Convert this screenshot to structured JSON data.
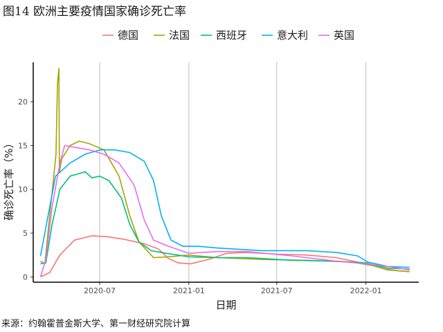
{
  "figure": {
    "title": "图14 欧洲主要疫情国家确诊死亡率",
    "source": "来源：约翰霍普金斯大学、第一财经研究院计算"
  },
  "chart_data": {
    "type": "line",
    "title": "图14 欧洲主要疫情国家确诊死亡率",
    "xlabel": "日期",
    "ylabel": "确诊死亡率（%）",
    "x_ticks": [
      "2020-07",
      "2021-01",
      "2021-07",
      "2022-01"
    ],
    "y_ticks": [
      0,
      5,
      10,
      15,
      20
    ],
    "xlim": [
      "2020-02-15",
      "2022-04-20"
    ],
    "ylim": [
      -0.6,
      24.5
    ],
    "grid": "vertical-major",
    "legend_position": "top",
    "series": [
      {
        "name": "德国",
        "color": "#F8766D",
        "points": [
          [
            "2020-03-01",
            0.0
          ],
          [
            "2020-03-20",
            0.5
          ],
          [
            "2020-04-10",
            2.5
          ],
          [
            "2020-05-10",
            4.2
          ],
          [
            "2020-06-15",
            4.7
          ],
          [
            "2020-07-15",
            4.6
          ],
          [
            "2020-08-20",
            4.3
          ],
          [
            "2020-09-30",
            3.8
          ],
          [
            "2020-10-30",
            3.2
          ],
          [
            "2020-11-20",
            2.1
          ],
          [
            "2020-12-10",
            1.6
          ],
          [
            "2021-01-05",
            1.5
          ],
          [
            "2021-02-10",
            2.0
          ],
          [
            "2021-03-20",
            2.7
          ],
          [
            "2021-05-01",
            2.8
          ],
          [
            "2021-07-01",
            2.6
          ],
          [
            "2021-09-01",
            2.5
          ],
          [
            "2021-11-01",
            2.2
          ],
          [
            "2021-12-15",
            1.7
          ],
          [
            "2022-01-10",
            1.4
          ],
          [
            "2022-02-10",
            0.9
          ],
          [
            "2022-03-10",
            0.7
          ],
          [
            "2022-04-01",
            0.6
          ]
        ]
      },
      {
        "name": "法国",
        "color": "#A3A500",
        "points": [
          [
            "2020-03-01",
            1.8
          ],
          [
            "2020-03-10",
            1.5
          ],
          [
            "2020-03-20",
            7.0
          ],
          [
            "2020-04-02",
            14.0
          ],
          [
            "2020-04-05",
            22.0
          ],
          [
            "2020-04-08",
            23.8
          ],
          [
            "2020-04-09",
            12.0
          ],
          [
            "2020-04-14",
            13.5
          ],
          [
            "2020-05-01",
            15.0
          ],
          [
            "2020-05-20",
            15.5
          ],
          [
            "2020-06-10",
            15.2
          ],
          [
            "2020-07-10",
            14.5
          ],
          [
            "2020-08-10",
            11.5
          ],
          [
            "2020-09-01",
            7.0
          ],
          [
            "2020-09-20",
            4.0
          ],
          [
            "2020-10-20",
            2.2
          ],
          [
            "2020-11-20",
            2.3
          ],
          [
            "2021-01-01",
            2.5
          ],
          [
            "2021-03-01",
            2.2
          ],
          [
            "2021-06-01",
            2.0
          ],
          [
            "2021-09-01",
            1.9
          ],
          [
            "2021-12-01",
            1.7
          ],
          [
            "2022-01-15",
            1.3
          ],
          [
            "2022-02-15",
            0.8
          ],
          [
            "2022-04-01",
            0.6
          ]
        ]
      },
      {
        "name": "西班牙",
        "color": "#00BF7D",
        "points": [
          [
            "2020-03-01",
            1.5
          ],
          [
            "2020-03-12",
            1.6
          ],
          [
            "2020-03-25",
            6.0
          ],
          [
            "2020-04-10",
            10.0
          ],
          [
            "2020-05-01",
            11.5
          ],
          [
            "2020-05-20",
            11.8
          ],
          [
            "2020-06-01",
            12.0
          ],
          [
            "2020-06-15",
            11.3
          ],
          [
            "2020-07-01",
            11.5
          ],
          [
            "2020-07-20",
            11.0
          ],
          [
            "2020-08-15",
            9.0
          ],
          [
            "2020-09-01",
            6.0
          ],
          [
            "2020-09-20",
            4.0
          ],
          [
            "2020-10-15",
            3.0
          ],
          [
            "2020-11-15",
            2.7
          ],
          [
            "2021-01-01",
            2.3
          ],
          [
            "2021-03-01",
            2.2
          ],
          [
            "2021-05-01",
            2.2
          ],
          [
            "2021-08-01",
            1.9
          ],
          [
            "2021-11-01",
            1.8
          ],
          [
            "2022-01-01",
            1.6
          ],
          [
            "2022-02-15",
            1.0
          ],
          [
            "2022-04-01",
            0.9
          ]
        ]
      },
      {
        "name": "意大利",
        "color": "#00B0F6",
        "points": [
          [
            "2020-03-01",
            2.4
          ],
          [
            "2020-03-15",
            6.5
          ],
          [
            "2020-04-01",
            11.5
          ],
          [
            "2020-05-01",
            13.0
          ],
          [
            "2020-06-01",
            14.0
          ],
          [
            "2020-07-01",
            14.5
          ],
          [
            "2020-08-01",
            14.5
          ],
          [
            "2020-09-01",
            14.2
          ],
          [
            "2020-10-01",
            13.2
          ],
          [
            "2020-10-20",
            11.0
          ],
          [
            "2020-11-05",
            7.0
          ],
          [
            "2020-11-25",
            4.2
          ],
          [
            "2020-12-20",
            3.5
          ],
          [
            "2021-01-20",
            3.5
          ],
          [
            "2021-03-01",
            3.3
          ],
          [
            "2021-06-01",
            3.0
          ],
          [
            "2021-09-01",
            3.0
          ],
          [
            "2021-11-01",
            2.8
          ],
          [
            "2021-12-15",
            2.4
          ],
          [
            "2022-01-05",
            1.7
          ],
          [
            "2022-02-15",
            1.2
          ],
          [
            "2022-04-01",
            1.1
          ]
        ]
      },
      {
        "name": "英国",
        "color": "#E76BF3",
        "points": [
          [
            "2020-03-01",
            0.0
          ],
          [
            "2020-03-12",
            2.0
          ],
          [
            "2020-03-25",
            8.0
          ],
          [
            "2020-04-10",
            13.0
          ],
          [
            "2020-04-20",
            15.0
          ],
          [
            "2020-05-10",
            14.8
          ],
          [
            "2020-06-10",
            14.5
          ],
          [
            "2020-07-10",
            14.0
          ],
          [
            "2020-08-10",
            13.0
          ],
          [
            "2020-09-10",
            10.5
          ],
          [
            "2020-10-01",
            6.5
          ],
          [
            "2020-10-20",
            4.2
          ],
          [
            "2020-11-20",
            3.5
          ],
          [
            "2021-01-01",
            2.7
          ],
          [
            "2021-03-01",
            2.9
          ],
          [
            "2021-05-01",
            2.9
          ],
          [
            "2021-08-01",
            2.4
          ],
          [
            "2021-11-01",
            1.8
          ],
          [
            "2022-01-01",
            1.5
          ],
          [
            "2022-02-15",
            1.2
          ],
          [
            "2022-04-01",
            0.8
          ]
        ]
      }
    ]
  }
}
